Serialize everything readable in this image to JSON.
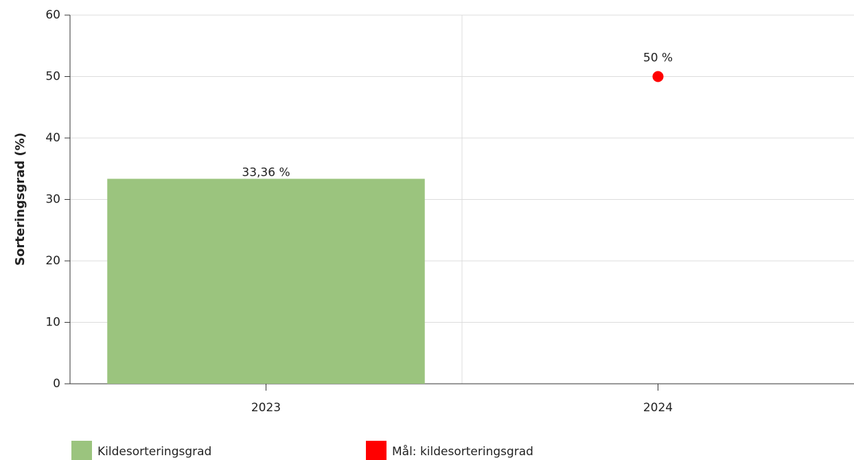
{
  "chart_data": {
    "type": "bar",
    "y_label": "Sorteringsgrad (%)",
    "categories": [
      "2023",
      "2024"
    ],
    "series": [
      {
        "name": "Kildesorteringsgrad",
        "type": "bar",
        "color": "#9bc47e",
        "values": [
          33.36,
          null
        ],
        "value_labels": [
          "33,36 %",
          null
        ]
      },
      {
        "name": "Mål: kildesorteringsgrad",
        "type": "scatter",
        "color": "#ff0000",
        "values": [
          null,
          50
        ],
        "value_labels": [
          null,
          "50 %"
        ]
      }
    ],
    "ylim": [
      0,
      60
    ],
    "yticks": [
      0,
      10,
      20,
      30,
      40,
      50,
      60
    ],
    "grid": true
  }
}
